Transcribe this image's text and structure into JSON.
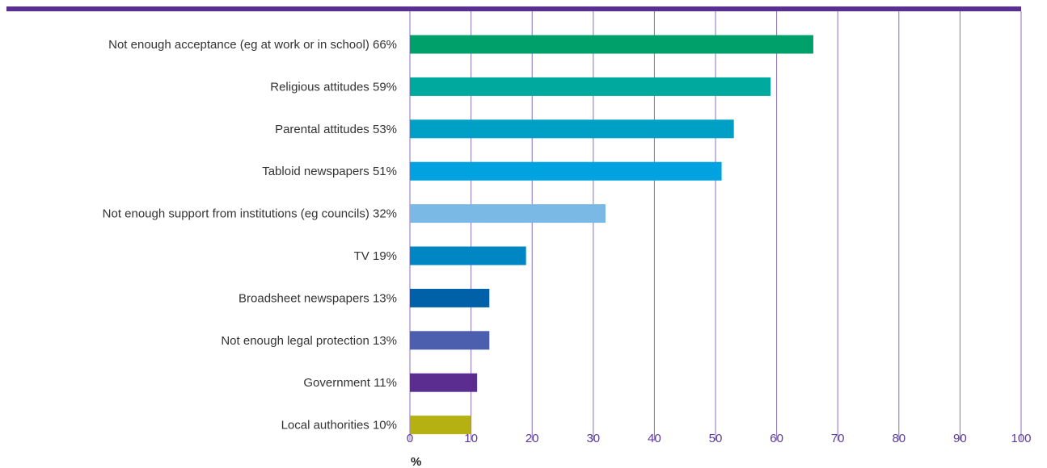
{
  "colors": {
    "top_rule": "#5b2e91",
    "grid": "#8b6fc0",
    "tick_text": "#5b3a9a",
    "bars": [
      "#00a06b",
      "#00a99d",
      "#00a0c6",
      "#00a3e0",
      "#7ab8e6",
      "#0086c3",
      "#0061a8",
      "#4b5fae",
      "#5c2d91",
      "#b5b112"
    ]
  },
  "chart_data": {
    "type": "bar",
    "orientation": "horizontal",
    "categories": [
      "Not enough acceptance (eg at work or in school) 66%",
      "Religious attitudes 59%",
      "Parental attitudes 53%",
      "Tabloid newspapers 51%",
      "Not enough support from institutions (eg councils) 32%",
      "TV 19%",
      "Broadsheet newspapers 13%",
      "Not enough legal protection 13%",
      "Government 11%",
      "Local authorities 10%"
    ],
    "values": [
      66,
      59,
      53,
      51,
      32,
      19,
      13,
      13,
      11,
      10
    ],
    "title": "",
    "xlabel": "%",
    "ylabel": "",
    "xlim": [
      0,
      100
    ],
    "xticks": [
      0,
      10,
      20,
      30,
      40,
      50,
      60,
      70,
      80,
      90,
      100
    ],
    "grid": "vertical",
    "legend": "none"
  }
}
